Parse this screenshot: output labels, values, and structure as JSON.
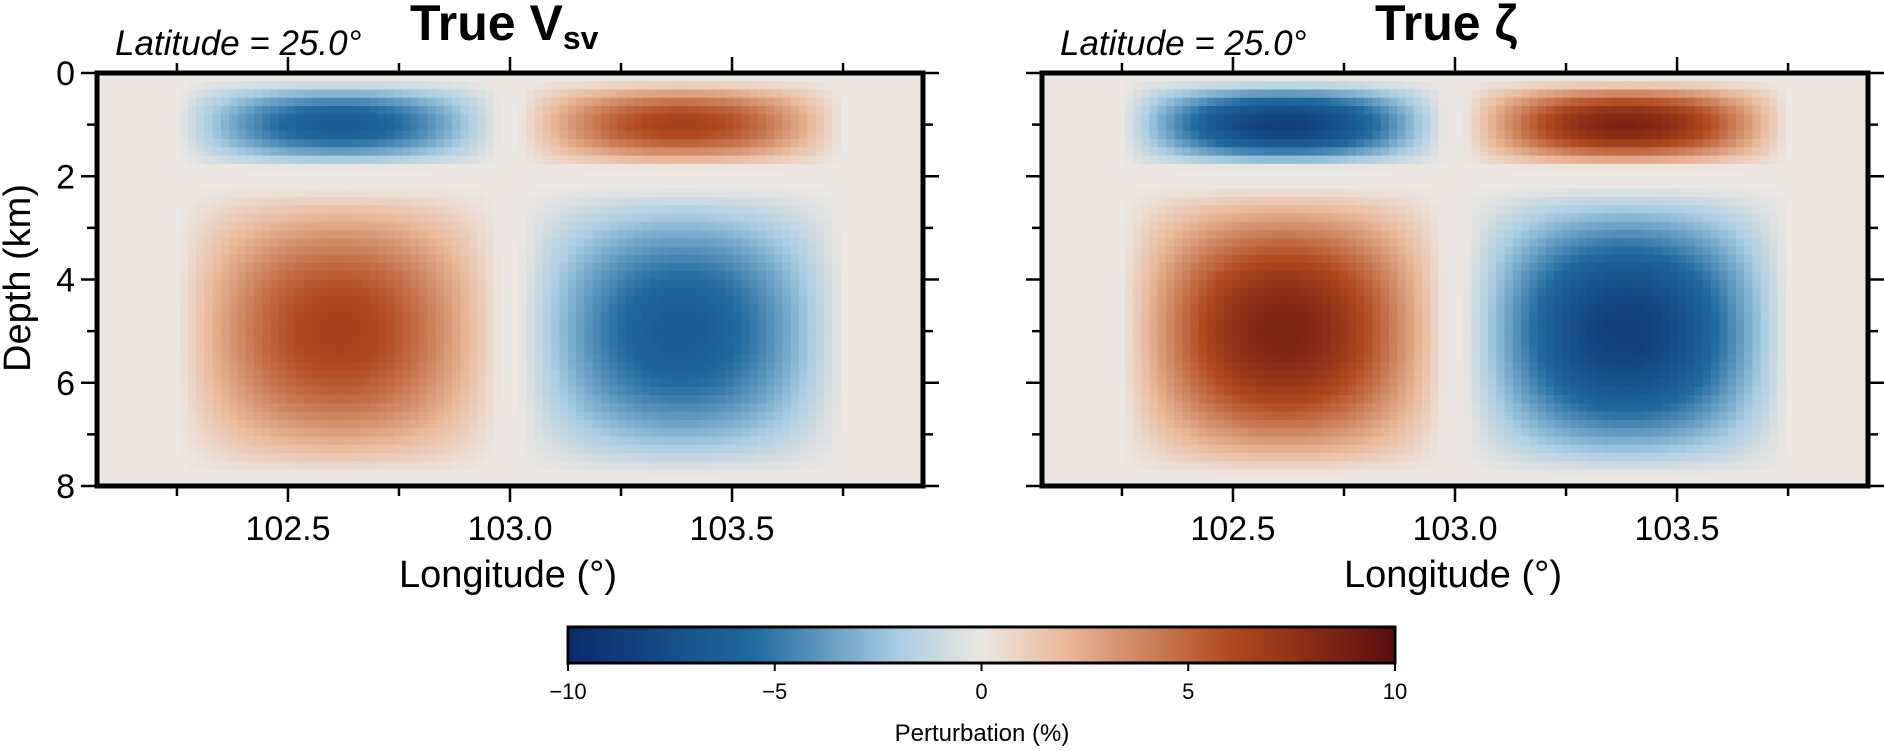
{
  "colors": {
    "neg_max": "#0a2a6b",
    "neg_mid": "#1f6aa0",
    "neg_low": "#a9cde2",
    "zero": "#ece7e2",
    "pos_low": "#e9b99a",
    "pos_mid": "#b04a1e",
    "pos_max": "#5a0d0d"
  },
  "chart_data": [
    {
      "type": "heatmap",
      "title_main": "True V",
      "title_sub": "sv",
      "subtitle": "Latitude = 25.0°",
      "xlabel": "Longitude (°)",
      "ylabel": "Depth (km)",
      "xlim": [
        102.07,
        103.93
      ],
      "ylim": [
        0,
        8
      ],
      "xticks": [
        102.5,
        103.0,
        103.5
      ],
      "xtick_labels": [
        "102.5",
        "103.0",
        "103.5"
      ],
      "yticks": [
        0,
        2,
        4,
        6,
        8
      ],
      "ytick_labels": [
        "0",
        "2",
        "4",
        "6",
        "8"
      ],
      "anomalies": [
        {
          "lon_center": 102.62,
          "depth_center": 1.0,
          "lon_range": [
            102.25,
            102.98
          ],
          "depth_range": [
            0.15,
            1.85
          ],
          "value": -6.5
        },
        {
          "lon_center": 103.38,
          "depth_center": 1.0,
          "lon_range": [
            103.02,
            103.75
          ],
          "depth_range": [
            0.15,
            1.85
          ],
          "value": 6.5
        },
        {
          "lon_center": 102.62,
          "depth_center": 5.0,
          "lon_range": [
            102.25,
            102.98
          ],
          "depth_range": [
            2.2,
            7.8
          ],
          "value": 6.5
        },
        {
          "lon_center": 103.38,
          "depth_center": 5.0,
          "lon_range": [
            103.02,
            103.75
          ],
          "depth_range": [
            2.2,
            7.8
          ],
          "value": -6.5
        }
      ]
    },
    {
      "type": "heatmap",
      "title_main": "True ζ",
      "title_sub": "",
      "subtitle": "Latitude = 25.0°",
      "xlabel": "Longitude (°)",
      "ylabel": "",
      "xlim": [
        102.07,
        103.93
      ],
      "ylim": [
        0,
        8
      ],
      "xticks": [
        102.5,
        103.0,
        103.5
      ],
      "xtick_labels": [
        "102.5",
        "103.0",
        "103.5"
      ],
      "yticks": [
        0,
        2,
        4,
        6,
        8
      ],
      "ytick_labels": [],
      "anomalies": [
        {
          "lon_center": 102.62,
          "depth_center": 1.0,
          "lon_range": [
            102.25,
            102.98
          ],
          "depth_range": [
            0.15,
            1.85
          ],
          "value": -8.5
        },
        {
          "lon_center": 103.38,
          "depth_center": 1.0,
          "lon_range": [
            103.02,
            103.75
          ],
          "depth_range": [
            0.15,
            1.85
          ],
          "value": 8.5
        },
        {
          "lon_center": 102.62,
          "depth_center": 5.0,
          "lon_range": [
            102.25,
            102.98
          ],
          "depth_range": [
            2.2,
            7.8
          ],
          "value": 8.5
        },
        {
          "lon_center": 103.38,
          "depth_center": 5.0,
          "lon_range": [
            103.02,
            103.75
          ],
          "depth_range": [
            2.2,
            7.8
          ],
          "value": -8.5
        }
      ]
    }
  ],
  "colorbar": {
    "label": "Perturbation (%)",
    "range": [
      -10,
      10
    ],
    "ticks": [
      -10,
      -5,
      0,
      5,
      10
    ],
    "tick_labels": [
      "−10",
      "−5",
      "0",
      "5",
      "10"
    ]
  }
}
